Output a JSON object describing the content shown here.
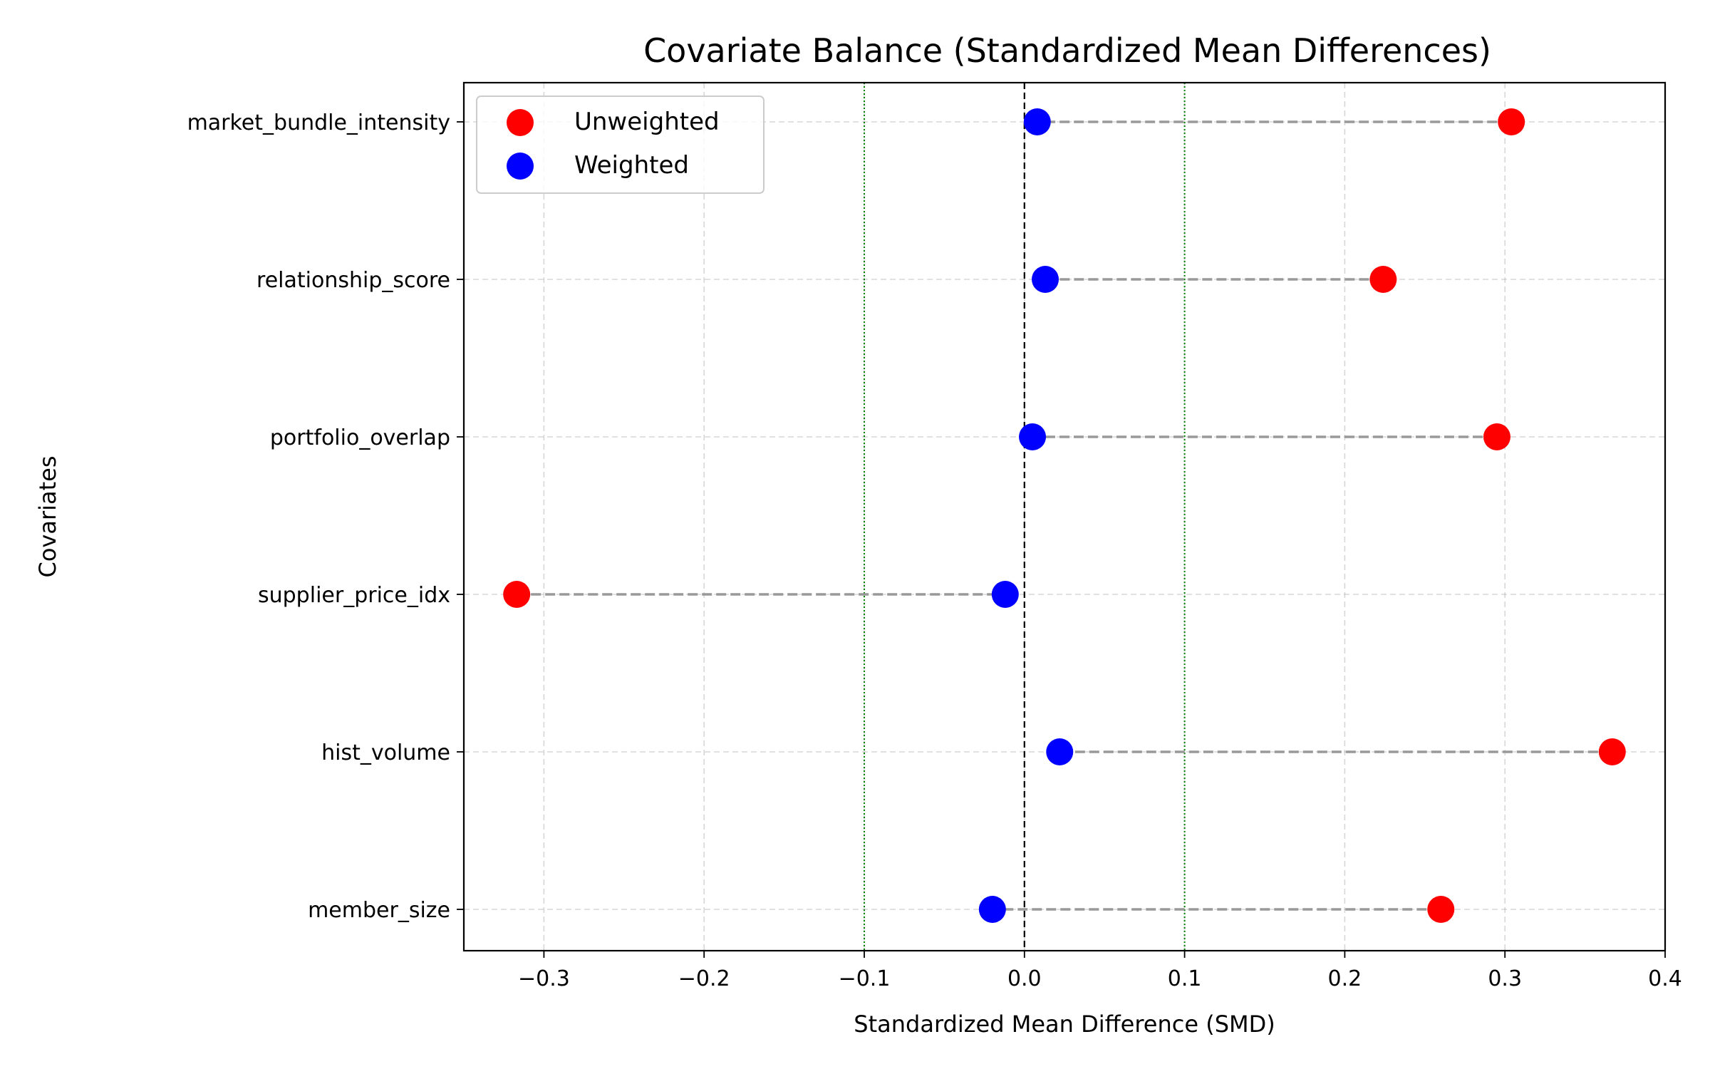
{
  "chart_data": {
    "type": "scatter",
    "title": "Covariate Balance (Standardized Mean Differences)",
    "xlabel": "Standardized Mean Difference (SMD)",
    "ylabel": "Covariates",
    "xlim": [
      -0.35,
      0.4
    ],
    "xticks": [
      -0.3,
      -0.2,
      -0.1,
      0.0,
      0.1,
      0.2,
      0.3,
      0.4
    ],
    "xtick_labels": [
      "−0.3",
      "−0.2",
      "−0.1",
      "0.0",
      "0.1",
      "0.2",
      "0.3",
      "0.4"
    ],
    "categories": [
      "market_bundle_intensity",
      "relationship_score",
      "portfolio_overlap",
      "supplier_price_idx",
      "hist_volume",
      "member_size"
    ],
    "series": [
      {
        "name": "Unweighted",
        "color": "#ff0000",
        "values": [
          0.304,
          0.224,
          0.295,
          -0.317,
          0.367,
          0.26
        ]
      },
      {
        "name": "Weighted",
        "color": "#0000ff",
        "values": [
          0.008,
          0.013,
          0.005,
          -0.012,
          0.022,
          -0.02
        ]
      }
    ],
    "reference_lines": {
      "zero": 0.0,
      "thresholds": [
        -0.1,
        0.1
      ]
    },
    "grid": true,
    "legend_position": "top-left"
  }
}
